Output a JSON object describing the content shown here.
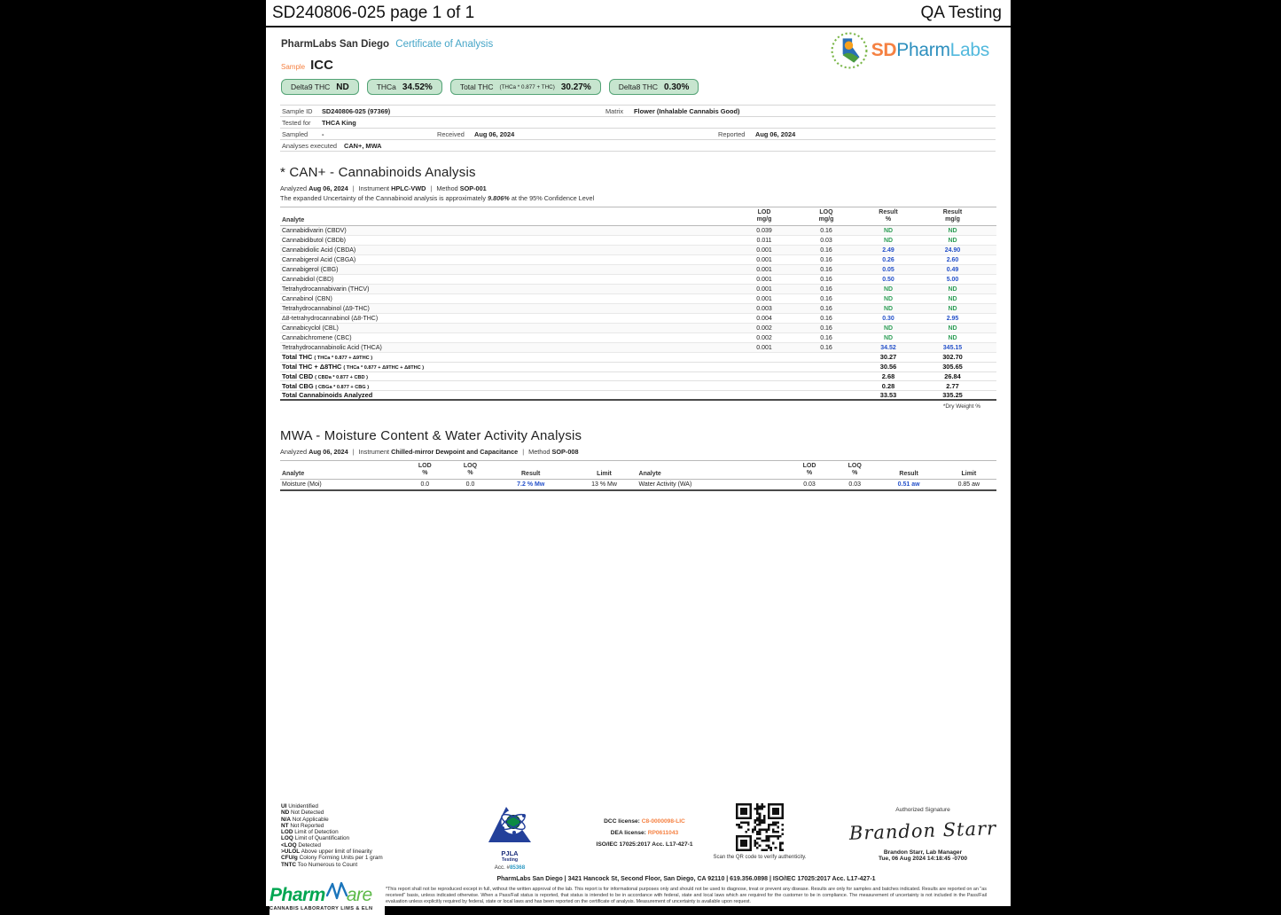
{
  "page_title": "SD240806-025 page 1 of 1",
  "qa_label": "QA Testing",
  "header": {
    "lab_name": "PharmLabs San Diego",
    "doc_type": "Certificate of Analysis",
    "sample_label": "Sample",
    "sample_name": "ICC"
  },
  "brand": {
    "sd": "SD",
    "pharm": "Pharm",
    "labs": "Labs"
  },
  "pills": [
    {
      "label": "Delta9 THC",
      "value": "ND"
    },
    {
      "label": "THCa",
      "value": "34.52%"
    },
    {
      "label": "Total THC",
      "formula": "(THCa * 0.877 + THC)",
      "value": "30.27%"
    },
    {
      "label": "Delta8 THC",
      "value": "0.30%"
    }
  ],
  "sample_info": {
    "sample_id_label": "Sample ID",
    "sample_id": "SD240806-025 (97369)",
    "matrix_label": "Matrix",
    "matrix": "Flower (Inhalable Cannabis Good)",
    "tested_for_label": "Tested for",
    "tested_for": "THCA King",
    "sampled_label": "Sampled",
    "sampled": "-",
    "received_label": "Received",
    "received": "Aug 06, 2024",
    "reported_label": "Reported",
    "reported": "Aug 06, 2024",
    "analyses_label": "Analyses executed",
    "analyses": "CAN+, MWA"
  },
  "cannabinoids": {
    "title": "* CAN+ - Cannabinoids Analysis",
    "analyzed_label": "Analyzed",
    "analyzed": "Aug 06, 2024",
    "instrument_label": "Instrument",
    "instrument": "HPLC-VWD",
    "method_label": "Method",
    "method": "SOP-001",
    "uncertainty_prefix": "The expanded Uncertainty of the Cannabinoid analysis is approximately",
    "uncertainty_value": "9.806%",
    "uncertainty_suffix": "at the 95% Confidence Level",
    "headers": {
      "analyte": "Analyte",
      "lod": "LOD",
      "loq": "LOQ",
      "result": "Result",
      "unit_mgg": "mg/g",
      "unit_pct": "%"
    },
    "rows": [
      {
        "name": "Cannabidivarin (CBDV)",
        "lod": "0.039",
        "loq": "0.16",
        "pct": "ND",
        "mgg": "ND"
      },
      {
        "name": "Cannabidibutol (CBDb)",
        "lod": "0.011",
        "loq": "0.03",
        "pct": "ND",
        "mgg": "ND"
      },
      {
        "name": "Cannabidiolic Acid (CBDA)",
        "lod": "0.001",
        "loq": "0.16",
        "pct": "2.49",
        "mgg": "24.90"
      },
      {
        "name": "Cannabigerol Acid (CBGA)",
        "lod": "0.001",
        "loq": "0.16",
        "pct": "0.26",
        "mgg": "2.60"
      },
      {
        "name": "Cannabigerol (CBG)",
        "lod": "0.001",
        "loq": "0.16",
        "pct": "0.05",
        "mgg": "0.49"
      },
      {
        "name": "Cannabidiol (CBD)",
        "lod": "0.001",
        "loq": "0.16",
        "pct": "0.50",
        "mgg": "5.00"
      },
      {
        "name": "Tetrahydrocannabivarin (THCV)",
        "lod": "0.001",
        "loq": "0.16",
        "pct": "ND",
        "mgg": "ND"
      },
      {
        "name": "Cannabinol (CBN)",
        "lod": "0.001",
        "loq": "0.16",
        "pct": "ND",
        "mgg": "ND"
      },
      {
        "name": "Tetrahydrocannabinol (Δ9-THC)",
        "lod": "0.003",
        "loq": "0.16",
        "pct": "ND",
        "mgg": "ND"
      },
      {
        "name": "Δ8-tetrahydrocannabinol (Δ8-THC)",
        "lod": "0.004",
        "loq": "0.16",
        "pct": "0.30",
        "mgg": "2.95"
      },
      {
        "name": "Cannabicyclol (CBL)",
        "lod": "0.002",
        "loq": "0.16",
        "pct": "ND",
        "mgg": "ND"
      },
      {
        "name": "Cannabichromene (CBC)",
        "lod": "0.002",
        "loq": "0.16",
        "pct": "ND",
        "mgg": "ND"
      },
      {
        "name": "Tetrahydrocannabinolic Acid (THCA)",
        "lod": "0.001",
        "loq": "0.16",
        "pct": "34.52",
        "mgg": "345.15"
      }
    ],
    "totals": [
      {
        "name": "Total THC",
        "formula": "( THCa * 0.877 + Δ9THC )",
        "pct": "30.27",
        "mgg": "302.70"
      },
      {
        "name": "Total THC + Δ8THC",
        "formula": "( THCa * 0.877 + Δ9THC + Δ8THC )",
        "pct": "30.56",
        "mgg": "305.65"
      },
      {
        "name": "Total CBD",
        "formula": "( CBDa * 0.877 + CBD )",
        "pct": "2.68",
        "mgg": "26.84"
      },
      {
        "name": "Total CBG",
        "formula": "( CBGa * 0.877 + CBG )",
        "pct": "0.28",
        "mgg": "2.77"
      },
      {
        "name": "Total Cannabinoids Analyzed",
        "formula": "",
        "pct": "33.53",
        "mgg": "335.25"
      }
    ],
    "footnote": "*Dry Weight %"
  },
  "mwa": {
    "title": "MWA - Moisture Content & Water Activity Analysis",
    "analyzed_label": "Analyzed",
    "analyzed": "Aug 06, 2024",
    "instrument_label": "Instrument",
    "instrument": "Chilled-mirror Dewpoint and Capacitance",
    "method_label": "Method",
    "method": "SOP-008",
    "headers": {
      "analyte": "Analyte",
      "lod": "LOD",
      "loq": "LOQ",
      "unit_pct": "%",
      "result": "Result",
      "limit": "Limit"
    },
    "left": {
      "analyte": "Moisture (Moi)",
      "lod": "0.0",
      "loq": "0.0",
      "result": "7.2 % Mw",
      "limit": "13 % Mw"
    },
    "right": {
      "analyte": "Water Activity (WA)",
      "lod": "0.03",
      "loq": "0.03",
      "result": "0.51 aw",
      "limit": "0.85 aw"
    }
  },
  "legend": [
    {
      "abbr": "UI",
      "text": "Unidentified"
    },
    {
      "abbr": "ND",
      "text": "Not Detected"
    },
    {
      "abbr": "N/A",
      "text": "Not Applicable"
    },
    {
      "abbr": "NT",
      "text": "Not Reported"
    },
    {
      "abbr": "LOD",
      "text": "Limit of Detection"
    },
    {
      "abbr": "LOQ",
      "text": "Limit of Quantification"
    },
    {
      "abbr": "<LOQ",
      "text": "Detected"
    },
    {
      "abbr": ">ULOL",
      "text": "Above upper limit of linearity"
    },
    {
      "abbr": "CFU/g",
      "text": "Colony Forming Units per 1 gram"
    },
    {
      "abbr": "TNTC",
      "text": "Too Numerous to Count"
    }
  ],
  "accreditation": {
    "org": "PJLA",
    "sub": "Testing",
    "acc_label": "Acc. #",
    "acc_number": "85368"
  },
  "licenses": {
    "dcc_label": "DCC license:",
    "dcc": "C8-0000098-LIC",
    "dea_label": "DEA license:",
    "dea": "RP0611043",
    "iso": "ISO/IEC 17025:2017 Acc. L17-427-1"
  },
  "qr": {
    "caption": "Scan the QR code to verify authenticity."
  },
  "signature": {
    "heading": "Authorized Signature",
    "name_script": "Brandon Starr",
    "name_line": "Brandon Starr, Lab Manager",
    "datetime": "Tue, 06 Aug 2024 14:18:45 -0700"
  },
  "footer": {
    "address": "PharmLabs San Diego | 3421 Hancock St, Second Floor, San Diego, CA 92110 | 619.356.0898 | ISO/IEC 17025:2017 Acc. L17-427-1",
    "disclaimer": "*This report shall not be reproduced except in full, without the written approval of the lab. This report is for informational purposes only and should not be used to diagnose, treat or prevent any disease. Results are only for samples and batches indicated. Results are reported on an \"as received\" basis, unless indicated otherwise. When a Pass/Fail status is reported, that status is intended to be in accordance with federal, state and local laws which are required for the customer to be in compliance. The measurement of uncertainty is not included in the Pass/Fail evaluation unless explicitly required by federal, state or local laws and has been reported on the certificate of analysis. Measurement of uncertainty is available upon request."
  },
  "pharmware": {
    "name_left": "Pharm",
    "name_right": "are",
    "tagline": "CANNABIS LABORATORY LIMS & ELN"
  },
  "colors": {
    "teal": "#45a5c7",
    "orange": "#f58142",
    "green": "#2f9e57",
    "blue": "#2551c9"
  }
}
